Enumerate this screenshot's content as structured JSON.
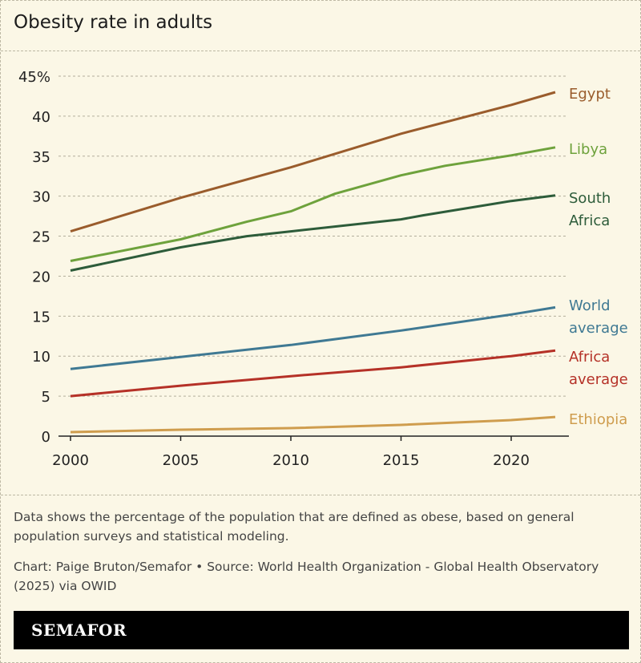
{
  "chart_data": {
    "type": "line",
    "title": "Obesity rate in adults",
    "xlabel": "",
    "ylabel": "",
    "xlim": [
      2000,
      2022
    ],
    "ylim": [
      0,
      45
    ],
    "x_ticks": [
      "2000",
      "2005",
      "2010",
      "2015",
      "2020"
    ],
    "y_ticks": [
      "0",
      "5",
      "10",
      "15",
      "20",
      "25",
      "30",
      "35",
      "40",
      "45%"
    ],
    "grid": "horizontal dashed",
    "legend": "direct labels at right",
    "series": [
      {
        "name": "Egypt",
        "label_lines": [
          "Egypt"
        ],
        "color": "#9a5c2c",
        "x": [
          2000,
          2005,
          2010,
          2015,
          2020,
          2022
        ],
        "values": [
          25.6,
          29.8,
          33.6,
          37.8,
          41.4,
          43.0
        ]
      },
      {
        "name": "Libya",
        "label_lines": [
          "Libya"
        ],
        "color": "#6ea23c",
        "x": [
          2000,
          2005,
          2008,
          2010,
          2012,
          2015,
          2017,
          2020,
          2022
        ],
        "values": [
          21.9,
          24.6,
          26.8,
          28.1,
          30.3,
          32.6,
          33.8,
          35.1,
          36.1
        ]
      },
      {
        "name": "South Africa",
        "label_lines": [
          "South",
          "Africa"
        ],
        "color": "#2d5c3a",
        "x": [
          2000,
          2005,
          2008,
          2010,
          2015,
          2016,
          2020,
          2022
        ],
        "values": [
          20.7,
          23.6,
          25.0,
          25.6,
          27.1,
          27.6,
          29.4,
          30.1
        ]
      },
      {
        "name": "World average",
        "label_lines": [
          "World",
          "average"
        ],
        "color": "#3f7993",
        "x": [
          2000,
          2005,
          2010,
          2015,
          2020,
          2022
        ],
        "values": [
          8.4,
          9.9,
          11.4,
          13.2,
          15.2,
          16.1
        ]
      },
      {
        "name": "Africa average",
        "label_lines": [
          "Africa",
          "average"
        ],
        "color": "#b53127",
        "x": [
          2000,
          2005,
          2010,
          2015,
          2020,
          2022
        ],
        "values": [
          5.0,
          6.3,
          7.5,
          8.6,
          10.0,
          10.7
        ]
      },
      {
        "name": "Ethiopia",
        "label_lines": [
          "Ethiopia"
        ],
        "color": "#cf9d4e",
        "x": [
          2000,
          2005,
          2010,
          2015,
          2020,
          2022
        ],
        "values": [
          0.5,
          0.8,
          1.0,
          1.4,
          2.0,
          2.4
        ]
      }
    ]
  },
  "note": "Data shows the percentage of the population that are defined as obese, based on general population surveys and statistical modeling.",
  "credit": "Chart: Paige Bruton/Semafor • Source: World Health Organization - Global Health Observatory (2025) via OWID",
  "brand": "SEMAFOR"
}
